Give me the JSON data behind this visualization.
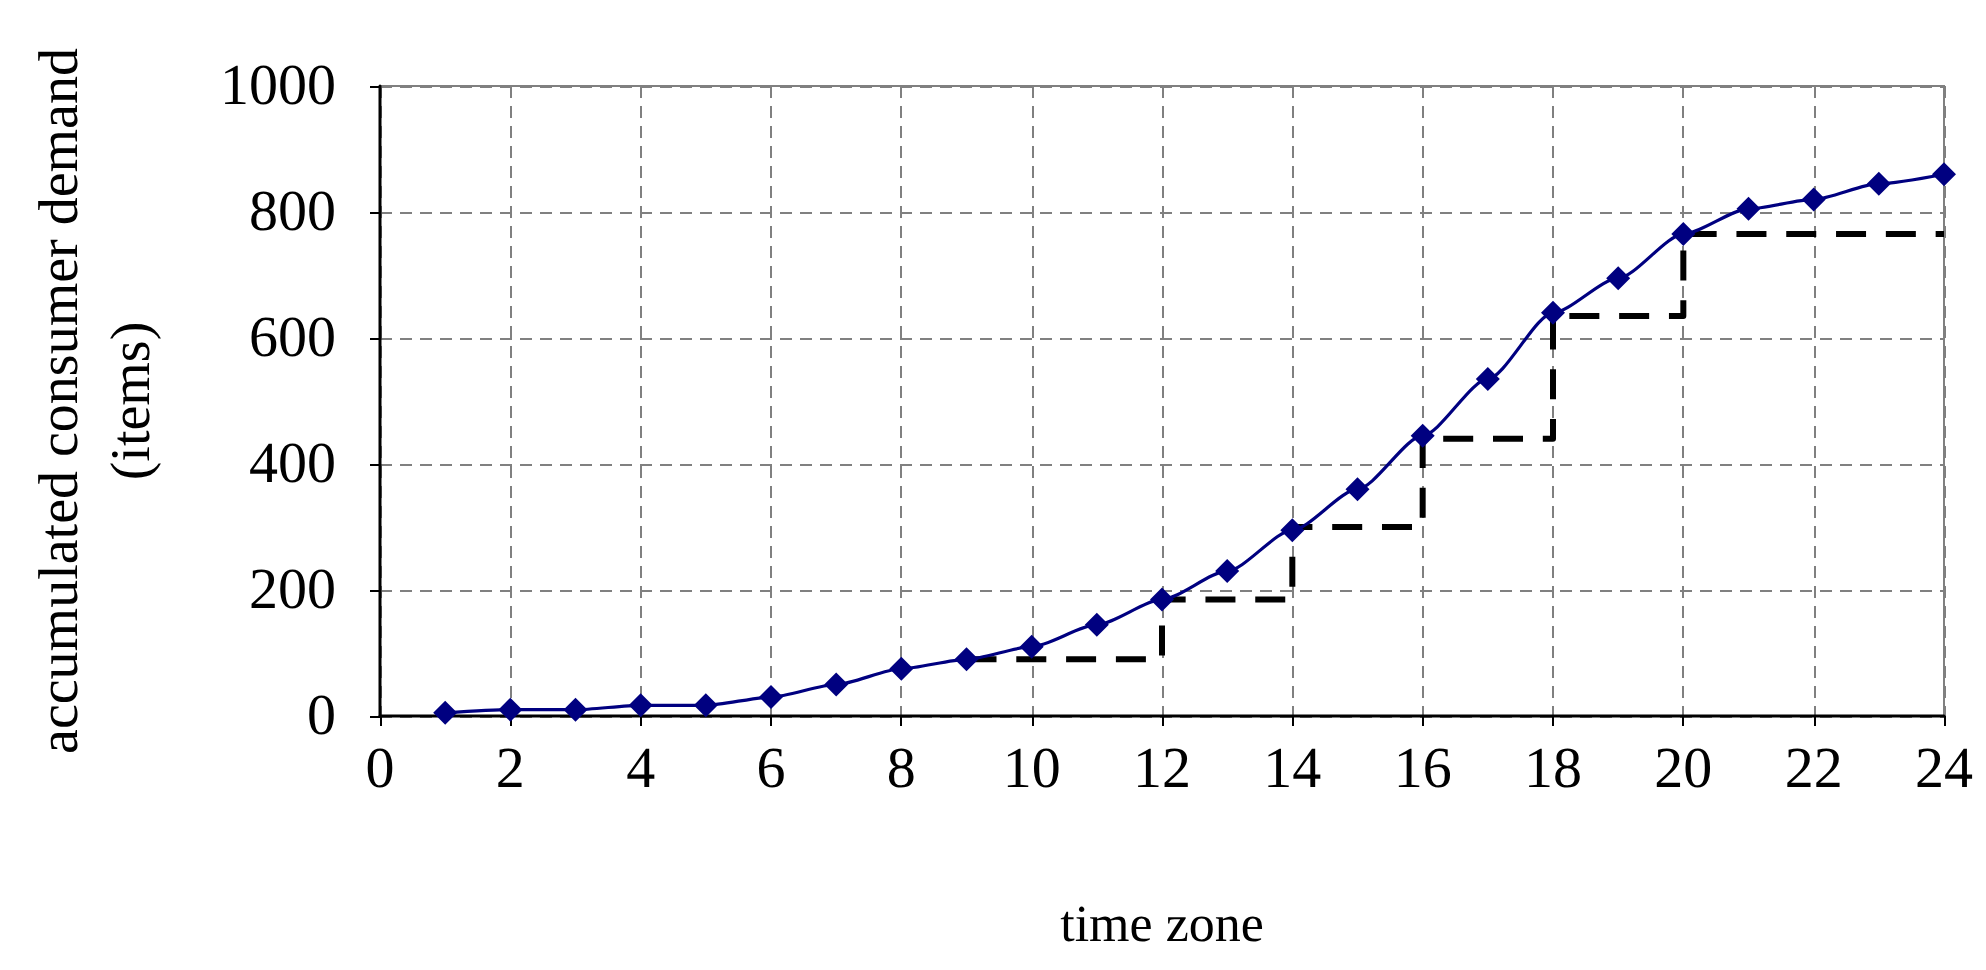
{
  "chart_data": {
    "type": "line",
    "xlabel": "time zone",
    "ylabel": "accumulated consumer demand\n(items)",
    "xlim": [
      0,
      24
    ],
    "xticks": [
      0,
      2,
      4,
      6,
      8,
      10,
      12,
      14,
      16,
      18,
      20,
      22,
      24
    ],
    "ylim": [
      0,
      1000
    ],
    "yticks": [
      0,
      200,
      400,
      600,
      800,
      1000
    ],
    "grid": true,
    "series": [
      {
        "color": "#000080",
        "marker": "diamond",
        "line_style": "solid",
        "x": [
          1,
          2,
          3,
          4,
          5,
          6,
          7,
          8,
          9,
          10,
          11,
          12,
          13,
          14,
          15,
          16,
          17,
          18,
          19,
          20,
          21,
          22,
          23,
          24
        ],
        "values": [
          5,
          10,
          10,
          17,
          17,
          30,
          50,
          75,
          90,
          110,
          145,
          185,
          230,
          295,
          360,
          445,
          535,
          640,
          695,
          765,
          805,
          820,
          845,
          860
        ]
      },
      {
        "type": "step",
        "color": "#000000",
        "marker": "none",
        "line_style": "dashed",
        "x": [
          9,
          12,
          14,
          16,
          18,
          20,
          24
        ],
        "values": [
          90,
          185,
          300,
          440,
          635,
          765,
          765
        ]
      }
    ]
  }
}
